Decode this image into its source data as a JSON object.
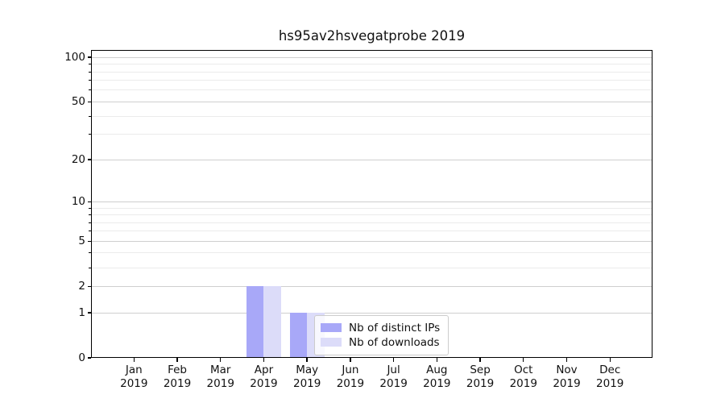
{
  "title": "hs95av2hsvegatprobe 2019",
  "colors": {
    "distinct_ips": "#a8a8f8",
    "downloads": "#dcdcf9",
    "grid_major": "#cfcfcf",
    "grid_minor": "#ebebeb",
    "spine": "#000000",
    "text": "#111111",
    "legend_border": "#cccccc",
    "background": "#ffffff"
  },
  "legend": {
    "items": [
      {
        "label": "Nb of distinct IPs",
        "color": "#a8a8f8"
      },
      {
        "label": "Nb of downloads",
        "color": "#dcdcf9"
      }
    ]
  },
  "chart_data": {
    "type": "bar",
    "title": "hs95av2hsvegatprobe 2019",
    "categories": [
      {
        "month": "Jan",
        "year": "2019"
      },
      {
        "month": "Feb",
        "year": "2019"
      },
      {
        "month": "Mar",
        "year": "2019"
      },
      {
        "month": "Apr",
        "year": "2019"
      },
      {
        "month": "May",
        "year": "2019"
      },
      {
        "month": "Jun",
        "year": "2019"
      },
      {
        "month": "Jul",
        "year": "2019"
      },
      {
        "month": "Aug",
        "year": "2019"
      },
      {
        "month": "Sep",
        "year": "2019"
      },
      {
        "month": "Oct",
        "year": "2019"
      },
      {
        "month": "Nov",
        "year": "2019"
      },
      {
        "month": "Dec",
        "year": "2019"
      }
    ],
    "series": [
      {
        "name": "Nb of distinct IPs",
        "color": "#a8a8f8",
        "values": [
          0,
          0,
          0,
          2,
          1,
          0,
          0,
          0,
          0,
          0,
          0,
          0
        ]
      },
      {
        "name": "Nb of downloads",
        "color": "#dcdcf9",
        "values": [
          0,
          0,
          0,
          2,
          1,
          0,
          0,
          0,
          0,
          0,
          0,
          0
        ]
      }
    ],
    "xlabel": "",
    "ylabel": "",
    "y_scale": "log1p",
    "y_major_ticks": [
      0,
      1,
      2,
      5,
      10,
      20,
      50,
      100
    ],
    "y_minor_ticks": [
      3,
      4,
      6,
      7,
      8,
      9,
      30,
      40,
      60,
      70,
      80,
      90
    ],
    "ylim": [
      0,
      110
    ],
    "grid": "horizontal",
    "legend_position": "lower-center"
  }
}
